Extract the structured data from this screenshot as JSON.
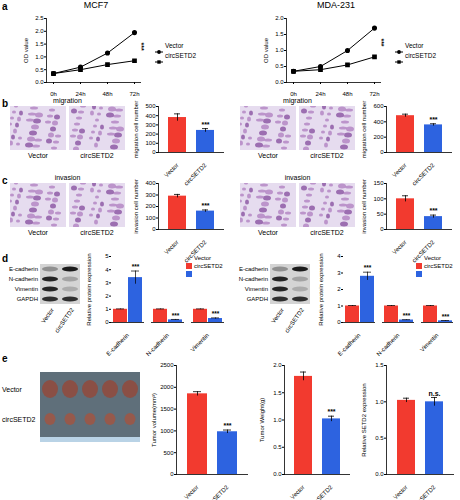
{
  "panel_labels": [
    "a",
    "b",
    "c",
    "d",
    "e"
  ],
  "columns": [
    "MCF7",
    "MDA-231"
  ],
  "images": {
    "micrograph_labels": [
      "Vector",
      "circSETD2"
    ],
    "migration_title": "migration",
    "invasion_title": "invasion",
    "blot_rows": [
      "E-cadherin",
      "N-cadherin",
      "Vimentin",
      "GAPDH"
    ],
    "blot_lanes": [
      "Vector",
      "circSETD2"
    ],
    "tumor_rows": [
      "Vector",
      "circSETD2"
    ]
  },
  "chart_data": [
    {
      "type": "line",
      "y_label": "OD value",
      "categories": [
        "0h",
        "24h",
        "48h",
        "72h"
      ],
      "series": [
        {
          "name": "Vector",
          "color": "#000000",
          "marker": "circle",
          "values": [
            0.35,
            0.6,
            1.15,
            1.95
          ]
        },
        {
          "name": "circSETD2",
          "color": "#000000",
          "marker": "square",
          "values": [
            0.35,
            0.5,
            0.7,
            0.85
          ]
        }
      ],
      "ylim": [
        0,
        2.5
      ],
      "yticks": [
        {
          "value": 0,
          "label": "0.0"
        },
        0.5,
        {
          "value": 1,
          "label": "1.0"
        },
        1.5,
        {
          "value": 2,
          "label": "2.0"
        },
        2.5
      ],
      "legend": "right",
      "annotations": [
        "***"
      ]
    },
    {
      "type": "line",
      "y_label": "OD value",
      "categories": [
        "0h",
        "24h",
        "48h",
        "72h"
      ],
      "series": [
        {
          "name": "Vector",
          "color": "#000000",
          "marker": "circle",
          "values": [
            0.35,
            0.5,
            1.0,
            1.7
          ]
        },
        {
          "name": "circSETD2",
          "color": "#000000",
          "marker": "square",
          "values": [
            0.35,
            0.4,
            0.55,
            0.8
          ]
        }
      ],
      "ylim": [
        0,
        2
      ],
      "yticks": [
        {
          "value": 0,
          "label": "0.0"
        },
        0.5,
        {
          "value": 1,
          "label": "1.0"
        },
        1.5,
        {
          "value": 2,
          "label": "2.0"
        }
      ],
      "legend": "right",
      "annotations": [
        "***"
      ]
    },
    {
      "type": "bar",
      "y_label": "migration cell number",
      "categories": [
        "Vector",
        "circSETD2"
      ],
      "values": [
        380,
        240
      ],
      "errors": [
        40,
        20
      ],
      "colors": [
        "#f23a2f",
        "#2d63e0"
      ],
      "ylim": [
        0,
        500
      ],
      "yticks": [
        0,
        100,
        200,
        300,
        400,
        500
      ],
      "annotations": [
        "***"
      ]
    },
    {
      "type": "bar",
      "y_label": "migration cell number",
      "categories": [
        "Vector",
        "circSETD2"
      ],
      "values": [
        480,
        360
      ],
      "errors": [
        20,
        15
      ],
      "colors": [
        "#f23a2f",
        "#2d63e0"
      ],
      "ylim": [
        0,
        600
      ],
      "yticks": [
        0,
        200,
        400,
        600
      ],
      "annotations": [
        "***"
      ]
    },
    {
      "type": "bar",
      "y_label": "invasion cell number",
      "categories": [
        "Vector",
        "circSETD2"
      ],
      "values": [
        290,
        160
      ],
      "errors": [
        15,
        10
      ],
      "colors": [
        "#f23a2f",
        "#2d63e0"
      ],
      "ylim": [
        0,
        400
      ],
      "yticks": [
        0,
        100,
        200,
        300,
        400
      ],
      "annotations": [
        "***"
      ]
    },
    {
      "type": "bar",
      "y_label": "invasion cell number",
      "categories": [
        "Vector",
        "circSETD2"
      ],
      "values": [
        100,
        42
      ],
      "errors": [
        10,
        5
      ],
      "colors": [
        "#f23a2f",
        "#2d63e0"
      ],
      "ylim": [
        0,
        150
      ],
      "yticks": [
        0,
        50,
        100,
        150
      ],
      "annotations": [
        "***"
      ]
    },
    {
      "type": "bar",
      "y_label": "Relative protein expression",
      "categories": [
        "E-cadherin",
        "N-cadherin",
        "Vimentin"
      ],
      "series": [
        {
          "name": "Vector",
          "color": "#f23a2f",
          "values": [
            1,
            1,
            1
          ],
          "errors": [
            0.03,
            0.03,
            0.03
          ]
        },
        {
          "name": "circSETD2",
          "color": "#2d63e0",
          "values": [
            3.4,
            0.2,
            0.3
          ],
          "errors": [
            0.5,
            0.03,
            0.05
          ]
        }
      ],
      "ylim": [
        0,
        5
      ],
      "yticks": [
        0,
        1,
        2,
        3,
        4,
        5
      ],
      "legend": "top",
      "annotations": [
        "***",
        "***",
        "***"
      ]
    },
    {
      "type": "bar",
      "y_label": "Relative protein expression",
      "categories": [
        "E-cadherin",
        "N-cadherin",
        "Vimentin"
      ],
      "series": [
        {
          "name": "Vector",
          "color": "#f23a2f",
          "values": [
            1,
            1,
            1
          ],
          "errors": [
            0.03,
            0.03,
            0.03
          ]
        },
        {
          "name": "circSETD2",
          "color": "#2d63e0",
          "values": [
            2.8,
            0.15,
            0.1
          ],
          "errors": [
            0.25,
            0.02,
            0.02
          ]
        }
      ],
      "ylim": [
        0,
        4
      ],
      "yticks": [
        0,
        1,
        2,
        3,
        4
      ],
      "legend": "top",
      "annotations": [
        "***",
        "***",
        "***"
      ]
    },
    {
      "type": "bar",
      "y_label": "Tumor volume(mm³)",
      "categories": [
        "Vector",
        "circSETD2"
      ],
      "values": [
        1850,
        980
      ],
      "errors": [
        50,
        40
      ],
      "colors": [
        "#f23a2f",
        "#2d63e0"
      ],
      "ylim": [
        0,
        2500
      ],
      "yticks": [
        0,
        500,
        1000,
        1500,
        2000,
        2500
      ],
      "annotations": [
        "***"
      ]
    },
    {
      "type": "bar",
      "y_label": "Tumor Weight(g)",
      "categories": [
        "Vector",
        "circSETD2"
      ],
      "values": [
        1.8,
        1.02
      ],
      "errors": [
        0.08,
        0.05
      ],
      "colors": [
        "#f23a2f",
        "#2d63e0"
      ],
      "ylim": [
        0,
        2
      ],
      "yticks": [
        {
          "value": 0,
          "label": "0.0"
        },
        0.5,
        {
          "value": 1,
          "label": "1.0"
        },
        1.5,
        {
          "value": 2,
          "label": "2.0"
        }
      ],
      "annotations": [
        "***"
      ]
    },
    {
      "type": "bar",
      "y_label": "Relative SETD2 expression",
      "categories": [
        "Vector",
        "circSETD2"
      ],
      "values": [
        1.02,
        1.0
      ],
      "errors": [
        0.03,
        0.06
      ],
      "colors": [
        "#f23a2f",
        "#2d63e0"
      ],
      "ylim": [
        0,
        1.5
      ],
      "yticks": [
        {
          "value": 0,
          "label": "0.0"
        },
        0.5,
        {
          "value": 1,
          "label": "1.0"
        },
        1.5
      ],
      "annotations": [
        "n.s."
      ]
    }
  ]
}
